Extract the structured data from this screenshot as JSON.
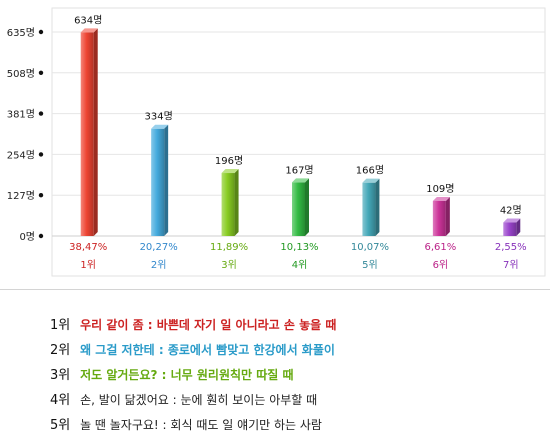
{
  "chart_data": {
    "type": "bar",
    "categories": [
      "1위",
      "2위",
      "3위",
      "4위",
      "5위",
      "6위",
      "7위"
    ],
    "values": [
      634,
      334,
      196,
      167,
      166,
      109,
      42
    ],
    "value_labels": [
      "634명",
      "334명",
      "196명",
      "167명",
      "166명",
      "109명",
      "42명"
    ],
    "percent_labels": [
      "38,47%",
      "20,27%",
      "11,89%",
      "10,13%",
      "10,07%",
      "6,61%",
      "2,55%"
    ],
    "yticks": [
      0,
      127,
      254,
      381,
      508,
      635
    ],
    "ytick_labels": [
      "0명",
      "127명",
      "254명",
      "381명",
      "508명",
      "635명"
    ],
    "ylim": [
      0,
      635
    ],
    "grid": true,
    "colors": [
      "#ee4433",
      "#44aadd",
      "#88cc22",
      "#33bb44",
      "#44a8b8",
      "#cc3399",
      "#9944cc"
    ],
    "label_colors": [
      "#cc2222",
      "#3388cc",
      "#66aa11",
      "#229922",
      "#338899",
      "#bb2288",
      "#8833bb"
    ]
  },
  "legend": [
    {
      "rank": "1위",
      "title": "우리 같이 좀 : ",
      "text": "바쁜데 자기 일 아니라고 손 놓을 때",
      "color": "#cc2222"
    },
    {
      "rank": "2위",
      "title": "왜 그걸 저한테 : ",
      "text": "종로에서 빰맞고 한강에서 화풀이",
      "color": "#2a9bc9"
    },
    {
      "rank": "3위",
      "title": "저도 알거든요? : ",
      "text": "너무 원리원칙만 따질 때",
      "color": "#66aa11"
    },
    {
      "rank": "4위",
      "title": "손, 발이 닮겠어요 : ",
      "text": "눈에 훤히 보이는 아부할 때",
      "color": "#222222"
    },
    {
      "rank": "5위",
      "title": "놀 땐 놀자구요! : ",
      "text": "회식 때도 일 얘기만 하는 사람",
      "color": "#222222"
    }
  ]
}
